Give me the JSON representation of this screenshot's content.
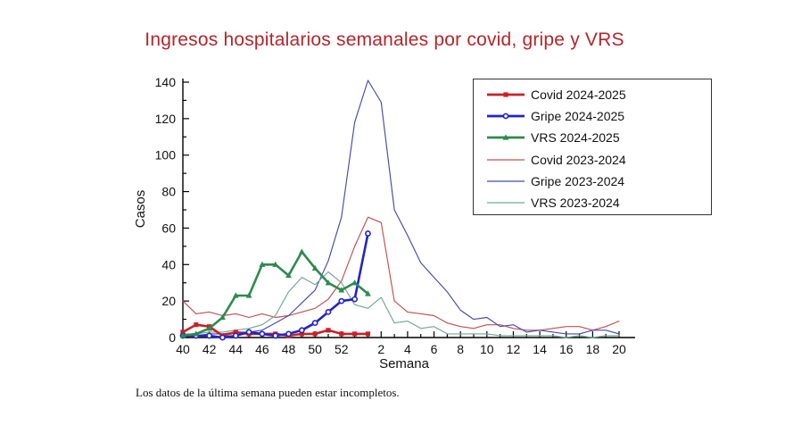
{
  "title": "Ingresos hospitalarios semanales por covid, gripe y VRS",
  "footnote": "Los datos de la última semana pueden estar incompletos.",
  "chart_data": {
    "type": "line",
    "title": "Ingresos hospitalarios semanales por covid, gripe y VRS",
    "xlabel": "Semana",
    "ylabel": "Casos",
    "ylim": [
      0,
      140
    ],
    "y_major_step": 20,
    "y_minor_step": 10,
    "grid": false,
    "legend_position": "top-right",
    "categories": [
      "40",
      "41",
      "42",
      "43",
      "44",
      "45",
      "46",
      "47",
      "48",
      "49",
      "50",
      "51",
      "52",
      "53",
      "1",
      "2",
      "3",
      "4",
      "5",
      "6",
      "7",
      "8",
      "9",
      "10",
      "11",
      "12",
      "13",
      "14",
      "15",
      "16",
      "17",
      "18",
      "19",
      "20"
    ],
    "x_major_tick_labels": [
      "40",
      "42",
      "44",
      "46",
      "48",
      "50",
      "52",
      "2",
      "4",
      "6",
      "8",
      "10",
      "12",
      "14",
      "16",
      "18",
      "20"
    ],
    "series": [
      {
        "name": "Covid 2024-2025",
        "color": "#cb2026",
        "line": "thick",
        "marker": "square",
        "values": [
          3,
          7,
          6,
          1,
          3,
          2,
          2,
          2,
          1,
          2,
          2,
          4,
          2,
          2,
          2
        ]
      },
      {
        "name": "Gripe 2024-2025",
        "color": "#2323c8",
        "line": "thick",
        "marker": "circle",
        "values": [
          1,
          1,
          1,
          0,
          1,
          3,
          2,
          1,
          2,
          4,
          8,
          14,
          20,
          21,
          57
        ]
      },
      {
        "name": "VRS 2024-2025",
        "color": "#2d8a4e",
        "line": "thick",
        "marker": "triangle",
        "values": [
          1,
          2,
          5,
          11,
          23,
          23,
          40,
          40,
          34,
          47,
          38,
          30,
          26,
          30,
          24
        ]
      },
      {
        "name": "Covid 2023-2024",
        "color": "#c05050",
        "line": "thin",
        "marker": "none",
        "values": [
          20,
          13,
          14,
          12,
          13,
          11,
          13,
          11,
          12,
          14,
          16,
          21,
          31,
          50,
          66,
          63,
          20,
          14,
          13,
          12,
          8,
          6,
          5,
          7,
          7,
          5,
          4,
          4,
          5,
          6,
          6,
          4,
          6,
          9
        ]
      },
      {
        "name": "Gripe 2023-2024",
        "color": "#4848b0",
        "line": "thin",
        "marker": "none",
        "values": [
          1,
          1,
          2,
          2,
          3,
          3,
          4,
          8,
          12,
          19,
          26,
          42,
          66,
          118,
          141,
          129,
          70,
          56,
          41,
          33,
          25,
          15,
          10,
          11,
          6,
          7,
          3,
          4,
          3,
          2,
          2,
          4,
          4,
          2
        ]
      },
      {
        "name": "VRS 2023-2024",
        "color": "#6fa890",
        "line": "thin",
        "marker": "none",
        "values": [
          2,
          2,
          3,
          3,
          4,
          5,
          7,
          12,
          25,
          33,
          29,
          36,
          30,
          18,
          16,
          22,
          8,
          9,
          5,
          6,
          2,
          2,
          2,
          2,
          1,
          1,
          1,
          1,
          1,
          0,
          1,
          0,
          1,
          1
        ]
      }
    ]
  }
}
